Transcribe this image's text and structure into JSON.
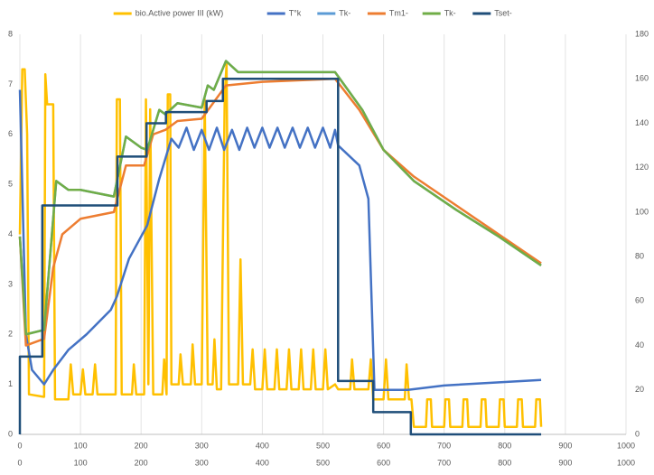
{
  "chart_data": {
    "type": "line",
    "xlim": [
      0,
      1000
    ],
    "xticks": [
      0,
      100,
      200,
      300,
      400,
      500,
      600,
      700,
      800,
      900,
      1000
    ],
    "ylim": [
      0,
      8
    ],
    "yticks": [
      0,
      1,
      2,
      3,
      4,
      5,
      6,
      7,
      8
    ],
    "y2lim": [
      0,
      180
    ],
    "y2ticks": [
      0,
      20,
      40,
      60,
      80,
      100,
      120,
      140,
      160,
      180
    ],
    "grid": true,
    "legend": "top",
    "series": [
      {
        "name": "bio.Active power III (kW)",
        "color": "#ffc000",
        "axis": "y",
        "x": [
          0,
          4,
          8,
          12,
          15,
          40,
          42,
          45,
          55,
          58,
          80,
          84,
          88,
          100,
          104,
          108,
          120,
          124,
          128,
          158,
          160,
          165,
          168,
          185,
          188,
          192,
          205,
          208,
          212,
          215,
          220,
          235,
          238,
          242,
          244,
          248,
          250,
          262,
          265,
          269,
          282,
          285,
          289,
          300,
          305,
          310,
          318,
          321,
          325,
          332,
          338,
          341,
          345,
          360,
          364,
          368,
          380,
          384,
          388,
          400,
          404,
          408,
          420,
          424,
          428,
          440,
          444,
          448,
          460,
          464,
          468,
          480,
          484,
          488,
          500,
          504,
          508,
          520,
          525,
          545,
          548,
          552,
          575,
          579,
          583,
          600,
          604,
          608,
          635,
          638,
          642,
          646,
          650,
          670,
          672,
          678,
          680,
          700,
          702,
          708,
          710,
          730,
          732,
          738,
          740,
          760,
          762,
          768,
          770,
          790,
          792,
          798,
          800,
          820,
          822,
          828,
          830,
          850,
          852,
          858,
          860
        ],
        "values": [
          4,
          7.3,
          7.3,
          6,
          0.8,
          0.75,
          7.2,
          6.6,
          6.6,
          0.7,
          0.7,
          1.4,
          0.8,
          0.8,
          1.3,
          0.8,
          0.8,
          1.4,
          0.8,
          0.8,
          6.7,
          6.7,
          0.8,
          0.8,
          1.4,
          0.8,
          0.8,
          6.7,
          1.0,
          6.5,
          0.8,
          0.8,
          1.5,
          0.8,
          6.8,
          6.8,
          1.0,
          1.0,
          1.6,
          1.0,
          1.0,
          1.8,
          1.0,
          1.0,
          6.7,
          1.0,
          1.0,
          1.9,
          0.9,
          0.9,
          6.8,
          7.4,
          1.0,
          1.0,
          3.5,
          1.0,
          1.0,
          1.7,
          0.9,
          0.9,
          1.7,
          0.9,
          0.9,
          1.7,
          0.9,
          0.9,
          1.7,
          0.9,
          0.9,
          1.7,
          0.9,
          0.9,
          1.7,
          0.9,
          0.9,
          1.7,
          0.9,
          1.0,
          0.9,
          0.9,
          1.5,
          0.9,
          0.9,
          1.5,
          0.7,
          0.7,
          1.5,
          0.7,
          0.7,
          1.4,
          0.7,
          0.7,
          0.15,
          0.15,
          0.7,
          0.7,
          0.15,
          0.15,
          0.7,
          0.7,
          0.15,
          0.15,
          0.7,
          0.7,
          0.15,
          0.15,
          0.7,
          0.7,
          0.15,
          0.15,
          0.7,
          0.7,
          0.15,
          0.15,
          0.7,
          0.7,
          0.15,
          0.15,
          0.7,
          0.7,
          0.15
        ]
      },
      {
        "name": "T°k",
        "color": "#4472c4",
        "axis": "y2",
        "x": [
          0,
          10,
          20,
          40,
          55,
          80,
          110,
          150,
          160,
          180,
          210,
          230,
          250,
          262,
          275,
          287,
          300,
          312,
          325,
          337,
          350,
          362,
          375,
          387,
          400,
          412,
          425,
          437,
          450,
          462,
          475,
          487,
          500,
          512,
          520,
          525,
          560,
          575,
          585,
          640,
          700,
          860
        ],
        "values": [
          155,
          45,
          29,
          22.5,
          29,
          38,
          45,
          56,
          62,
          79,
          94,
          115,
          133,
          129,
          138,
          128,
          137,
          128,
          138,
          128,
          137,
          128,
          138,
          129,
          138,
          129,
          138,
          129,
          138,
          129,
          138,
          129,
          138,
          129,
          137,
          130,
          121,
          106,
          20,
          20,
          22,
          24.5
        ]
      },
      {
        "name": "Tk-",
        "color": "#5b9bd5",
        "axis": "y2",
        "x": [
          0,
          10,
          40,
          60,
          80,
          100,
          155,
          175,
          200,
          210,
          230,
          240,
          260,
          300,
          310,
          320,
          340,
          360,
          520,
          565,
          600,
          650,
          720,
          790,
          860
        ],
        "values": [
          89,
          45,
          47,
          114,
          110,
          110,
          107,
          134,
          129,
          128,
          146,
          144,
          149,
          147,
          157,
          155,
          168,
          163,
          163,
          146,
          128,
          114,
          101,
          89,
          76
        ]
      },
      {
        "name": "Tm1-",
        "color": "#ed7d31",
        "axis": "y2",
        "x": [
          0,
          10,
          40,
          55,
          70,
          100,
          155,
          175,
          205,
          220,
          240,
          260,
          300,
          340,
          400,
          520,
          560,
          600,
          650,
          720,
          790,
          860
        ],
        "values": [
          89,
          40,
          43,
          75,
          90,
          97,
          100,
          121,
          121,
          135,
          137,
          141,
          142,
          157,
          158.6,
          160,
          146,
          128,
          116,
          103,
          90,
          77
        ]
      },
      {
        "name": "Tk-",
        "color": "#70ad47",
        "axis": "y2",
        "x": [
          0,
          10,
          40,
          60,
          80,
          100,
          155,
          175,
          200,
          210,
          230,
          240,
          260,
          300,
          310,
          320,
          340,
          360,
          520,
          565,
          600,
          650,
          720,
          790,
          860
        ],
        "values": [
          89,
          45,
          47,
          114,
          110,
          110,
          107,
          134,
          129,
          128,
          146,
          144,
          149,
          147,
          157,
          155,
          168,
          163,
          163,
          146,
          128,
          114,
          101,
          89,
          76
        ]
      },
      {
        "name": "Tset-",
        "color": "#1f4e79",
        "axis": "y2",
        "x": [
          0,
          0,
          37,
          37,
          161,
          161,
          209,
          209,
          241,
          241,
          308,
          308,
          335,
          335,
          525,
          525,
          583,
          583,
          645,
          645,
          860
        ],
        "values": [
          0,
          35,
          35,
          103,
          103,
          125,
          125,
          140,
          140,
          145,
          145,
          150,
          150,
          160,
          160,
          24,
          24,
          10,
          10,
          0,
          0
        ]
      }
    ]
  }
}
